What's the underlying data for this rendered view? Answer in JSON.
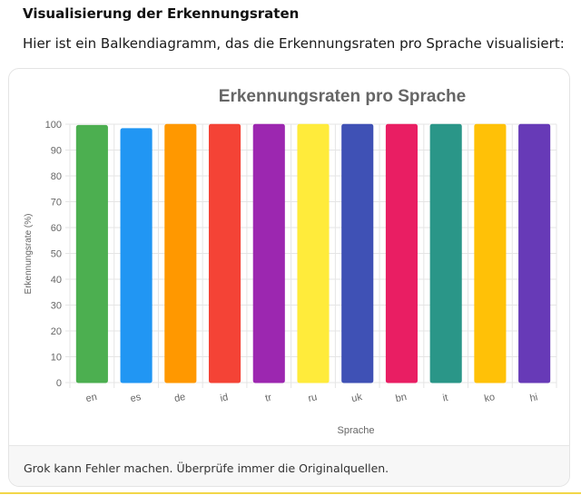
{
  "heading": "Visualisierung der Erkennungsraten",
  "intro": "Hier ist ein Balkendiagramm, das die Erkennungsraten pro Sprache visualisiert:",
  "footer": "Grok kann Fehler machen. Überprüfe immer die Originalquellen.",
  "chart_data": {
    "type": "bar",
    "title": "Erkennungsraten pro Sprache",
    "xlabel": "Sprache",
    "ylabel": "Erkennungsrate (%)",
    "ylim": [
      0,
      100
    ],
    "yticks": [
      0,
      10,
      20,
      30,
      40,
      50,
      60,
      70,
      80,
      90,
      100
    ],
    "categories": [
      "en",
      "es",
      "de",
      "id",
      "tr",
      "ru",
      "uk",
      "bn",
      "it",
      "ko",
      "hi"
    ],
    "values": [
      99.5,
      98.3,
      99.9,
      99.9,
      99.9,
      99.9,
      99.9,
      99.9,
      99.9,
      99.9,
      99.9
    ],
    "colors": [
      "#4caf50",
      "#2196f3",
      "#ff9800",
      "#f44336",
      "#9c27b0",
      "#ffeb3b",
      "#3f51b5",
      "#e91e63",
      "#2a9688",
      "#ffc107",
      "#673ab7"
    ],
    "grid": true,
    "legend": "none"
  }
}
